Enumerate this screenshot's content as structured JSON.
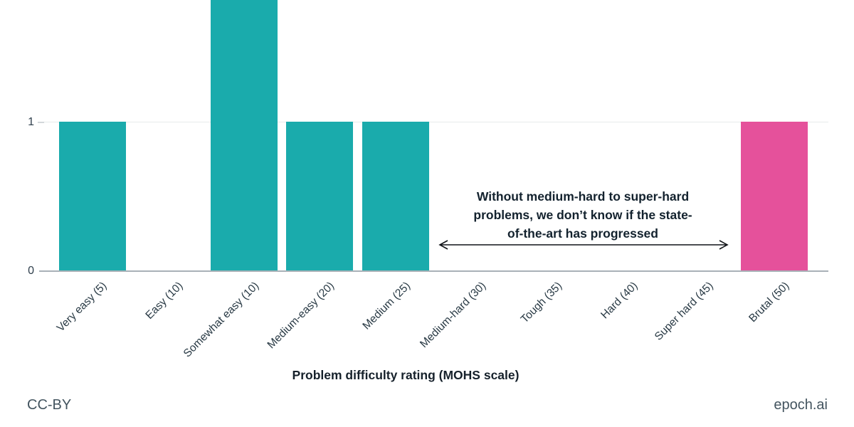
{
  "chart_data": {
    "type": "bar",
    "title": "",
    "xlabel": "Problem difficulty rating (MOHS scale)",
    "ylabel": "",
    "categories": [
      "Very easy (5)",
      "Easy (10)",
      "Somewhat easy (10)",
      "Medium-easy (20)",
      "Medium (25)",
      "Medium-hard (30)",
      "Tough (35)",
      "Hard (40)",
      "Super hard (45)",
      "Brutal (50)"
    ],
    "values": [
      1,
      0,
      2,
      1,
      1,
      0,
      0,
      0,
      0,
      1
    ],
    "yticks": [
      "0",
      "1"
    ],
    "ylim_visible": [
      0,
      1.82
    ],
    "grid": "horizontal gridline at y=1 only",
    "legend": "none",
    "colors": {
      "bar_default": "#1aabac",
      "bar_highlight": "#e5519b",
      "baseline": "#a9b1b7",
      "gridline": "#e7eaec",
      "text_dark": "#13222e",
      "footer_text": "#43545f"
    },
    "highlight_index": 9,
    "annotation": {
      "lines": [
        "Without medium-hard to super-hard",
        "problems, we don’t know if the state-",
        "of-the-art has progressed"
      ],
      "arrow_span": "Medium-hard (30) to Super hard (45)"
    }
  },
  "footer": {
    "license": "CC-BY",
    "brand": "epoch.ai"
  }
}
